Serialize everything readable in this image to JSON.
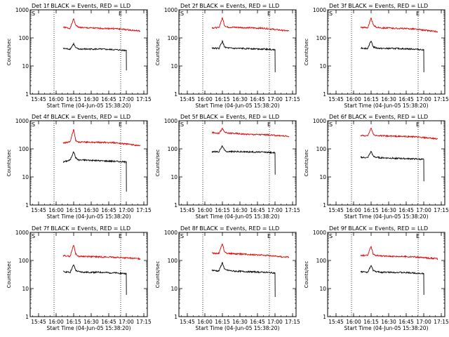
{
  "colors": {
    "events": "#000000",
    "lld": "#e00000",
    "axis": "#000000"
  },
  "panel_common": {
    "xlabel": "Start Time (04-Jun-05 15:38:20)",
    "ylabel": "Counts/sec",
    "x_tick_labels": [
      "15:45",
      "16:00",
      "16:15",
      "16:30",
      "16:45",
      "17:00",
      "17:15"
    ],
    "y_tick_labels": [
      "1",
      "10",
      "100",
      "1000"
    ],
    "marker_start": "S",
    "marker_end": "E"
  },
  "chart_data": [
    {
      "type": "line",
      "title": "Det 1f BLACK = Events, RED = LLD",
      "xlim": [
        15.63,
        17.3
      ],
      "ylim": [
        1,
        1000
      ],
      "yscale": "log",
      "marker_times": [
        15.97,
        16.92
      ],
      "series": [
        {
          "color": "red",
          "x": [
            16.1,
            16.2,
            16.25,
            16.28,
            16.32,
            16.4,
            16.6,
            16.85,
            17.2
          ],
          "values": [
            240,
            220,
            480,
            280,
            240,
            230,
            220,
            215,
            175
          ]
        },
        {
          "color": "black",
          "x": [
            16.1,
            16.2,
            16.25,
            16.28,
            16.32,
            16.4,
            16.6,
            16.85,
            17.0,
            17.02
          ],
          "values": [
            42,
            40,
            62,
            44,
            40,
            40,
            40,
            38,
            36,
            7
          ]
        }
      ]
    },
    {
      "type": "line",
      "title": "Det 2f BLACK = Events, RED = LLD",
      "xlim": [
        15.63,
        17.3
      ],
      "ylim": [
        1,
        1000
      ],
      "yscale": "log",
      "marker_times": [
        15.97,
        16.92
      ],
      "series": [
        {
          "color": "red",
          "x": [
            16.1,
            16.2,
            16.25,
            16.28,
            16.32,
            16.4,
            16.6,
            16.85,
            17.2
          ],
          "values": [
            230,
            230,
            520,
            280,
            240,
            240,
            230,
            220,
            175
          ]
        },
        {
          "color": "black",
          "x": [
            16.1,
            16.2,
            16.25,
            16.28,
            16.32,
            16.4,
            16.6,
            16.85,
            17.0,
            17.02
          ],
          "values": [
            44,
            42,
            75,
            48,
            44,
            42,
            42,
            40,
            38,
            6
          ]
        }
      ]
    },
    {
      "type": "line",
      "title": "Det 3f BLACK = Events, RED = LLD",
      "xlim": [
        15.63,
        17.3
      ],
      "ylim": [
        1,
        1000
      ],
      "yscale": "log",
      "marker_times": [
        15.97,
        16.92
      ],
      "series": [
        {
          "color": "red",
          "x": [
            16.1,
            16.2,
            16.25,
            16.28,
            16.32,
            16.4,
            16.6,
            16.85,
            17.2
          ],
          "values": [
            240,
            230,
            500,
            290,
            240,
            230,
            220,
            210,
            165
          ]
        },
        {
          "color": "black",
          "x": [
            16.1,
            16.2,
            16.25,
            16.28,
            16.32,
            16.4,
            16.6,
            16.85,
            17.0,
            17.02
          ],
          "values": [
            44,
            42,
            80,
            48,
            44,
            42,
            42,
            40,
            38,
            6
          ]
        }
      ]
    },
    {
      "type": "line",
      "title": "Det 4f BLACK = Events, RED = LLD",
      "xlim": [
        15.63,
        17.3
      ],
      "ylim": [
        1,
        1000
      ],
      "yscale": "log",
      "marker_times": [
        15.97,
        16.92
      ],
      "series": [
        {
          "color": "red",
          "x": [
            16.1,
            16.2,
            16.25,
            16.28,
            16.32,
            16.4,
            16.6,
            16.85,
            17.2
          ],
          "values": [
            160,
            180,
            480,
            200,
            170,
            175,
            170,
            165,
            130
          ]
        },
        {
          "color": "black",
          "x": [
            16.1,
            16.2,
            16.25,
            16.28,
            16.32,
            16.4,
            16.6,
            16.85,
            17.0,
            17.02
          ],
          "values": [
            34,
            40,
            80,
            48,
            40,
            40,
            38,
            36,
            34,
            3
          ]
        }
      ]
    },
    {
      "type": "line",
      "title": "Det 5f BLACK = Events, RED = LLD",
      "xlim": [
        15.63,
        17.3
      ],
      "ylim": [
        1,
        1000
      ],
      "yscale": "log",
      "marker_times": [
        15.97,
        16.92
      ],
      "series": [
        {
          "color": "red",
          "x": [
            16.1,
            16.2,
            16.25,
            16.28,
            16.32,
            16.4,
            16.6,
            16.85,
            17.2
          ],
          "values": [
            380,
            360,
            520,
            400,
            360,
            360,
            330,
            320,
            280
          ]
        },
        {
          "color": "black",
          "x": [
            16.1,
            16.2,
            16.25,
            16.28,
            16.32,
            16.4,
            16.6,
            16.85,
            17.0,
            17.02
          ],
          "values": [
            80,
            78,
            130,
            88,
            80,
            80,
            78,
            76,
            72,
            12
          ]
        }
      ]
    },
    {
      "type": "line",
      "title": "Det 6f BLACK = Events, RED = LLD",
      "xlim": [
        15.63,
        17.3
      ],
      "ylim": [
        1,
        1000
      ],
      "yscale": "log",
      "marker_times": [
        15.97,
        16.92
      ],
      "series": [
        {
          "color": "red",
          "x": [
            16.1,
            16.2,
            16.25,
            16.28,
            16.32,
            16.4,
            16.6,
            16.85,
            17.2
          ],
          "values": [
            300,
            290,
            560,
            330,
            300,
            290,
            280,
            270,
            225
          ]
        },
        {
          "color": "black",
          "x": [
            16.1,
            16.2,
            16.25,
            16.28,
            16.32,
            16.4,
            16.6,
            16.85,
            17.0,
            17.02
          ],
          "values": [
            50,
            48,
            82,
            54,
            50,
            48,
            46,
            44,
            42,
            7
          ]
        }
      ]
    },
    {
      "type": "line",
      "title": "Det 7f BLACK = Events, RED = LLD",
      "xlim": [
        15.63,
        17.3
      ],
      "ylim": [
        1,
        1000
      ],
      "yscale": "log",
      "marker_times": [
        15.97,
        16.92
      ],
      "series": [
        {
          "color": "red",
          "x": [
            16.1,
            16.2,
            16.25,
            16.28,
            16.32,
            16.4,
            16.6,
            16.85,
            17.2
          ],
          "values": [
            150,
            140,
            360,
            170,
            140,
            140,
            135,
            130,
            115
          ]
        },
        {
          "color": "black",
          "x": [
            16.1,
            16.2,
            16.25,
            16.28,
            16.32,
            16.4,
            16.6,
            16.85,
            17.0,
            17.02
          ],
          "values": [
            40,
            38,
            70,
            44,
            40,
            38,
            38,
            36,
            34,
            6
          ]
        }
      ]
    },
    {
      "type": "line",
      "title": "Det 8f BLACK = Events, RED = LLD",
      "xlim": [
        15.63,
        17.3
      ],
      "ylim": [
        1,
        1000
      ],
      "yscale": "log",
      "marker_times": [
        15.97,
        16.92
      ],
      "series": [
        {
          "color": "red",
          "x": [
            16.1,
            16.2,
            16.25,
            16.28,
            16.32,
            16.4,
            16.6,
            16.85,
            17.2
          ],
          "values": [
            180,
            180,
            400,
            200,
            180,
            175,
            165,
            155,
            130
          ]
        },
        {
          "color": "black",
          "x": [
            16.1,
            16.2,
            16.25,
            16.28,
            16.32,
            16.4,
            16.6,
            16.85,
            17.0,
            17.02
          ],
          "values": [
            45,
            42,
            85,
            48,
            45,
            42,
            40,
            38,
            36,
            5
          ]
        }
      ]
    },
    {
      "type": "line",
      "title": "Det 9f BLACK = Events, RED = LLD",
      "xlim": [
        15.63,
        17.3
      ],
      "ylim": [
        1,
        1000
      ],
      "yscale": "log",
      "marker_times": [
        15.97,
        16.92
      ],
      "series": [
        {
          "color": "red",
          "x": [
            16.1,
            16.2,
            16.25,
            16.28,
            16.32,
            16.4,
            16.6,
            16.85,
            17.2
          ],
          "values": [
            150,
            150,
            320,
            170,
            150,
            145,
            140,
            135,
            115
          ]
        },
        {
          "color": "black",
          "x": [
            16.1,
            16.2,
            16.25,
            16.28,
            16.32,
            16.4,
            16.6,
            16.85,
            17.0,
            17.02
          ],
          "values": [
            40,
            38,
            65,
            44,
            40,
            38,
            38,
            36,
            34,
            6
          ]
        }
      ]
    }
  ]
}
